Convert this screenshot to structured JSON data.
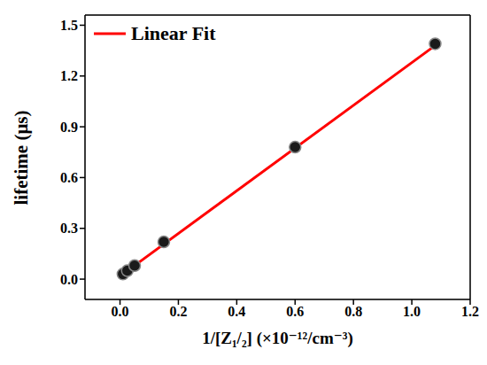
{
  "chart_data": {
    "type": "scatter",
    "x_label": "1/[Z₁/₂] (×10⁻¹²/cm⁻³)",
    "y_label": "lifetime (μs)",
    "xlim": [
      -0.12,
      1.2
    ],
    "ylim": [
      -0.12,
      1.56
    ],
    "xticks": [
      {
        "value": 0,
        "label": "0.0"
      },
      0.2,
      0.4,
      0.6,
      0.8,
      {
        "value": 1,
        "label": "1.0"
      },
      1.2
    ],
    "yticks": [
      {
        "value": 0,
        "label": "0.0"
      },
      0.3,
      0.6,
      0.9,
      1.2,
      1.5
    ],
    "grid": true,
    "legend": "upper left",
    "series": [
      {
        "type": "scatter",
        "color": "#1a1a1a",
        "marker": "circle",
        "x": [
          0.01,
          0.025,
          0.05,
          0.15,
          0.6,
          1.08
        ],
        "values": [
          0.03,
          0.05,
          0.08,
          0.22,
          0.78,
          1.39
        ]
      },
      {
        "name": "Linear Fit",
        "type": "line",
        "color": "#ff0000",
        "line_style": "solid",
        "x": [
          0.01,
          1.08
        ],
        "values": [
          0.03,
          1.38
        ]
      }
    ]
  }
}
